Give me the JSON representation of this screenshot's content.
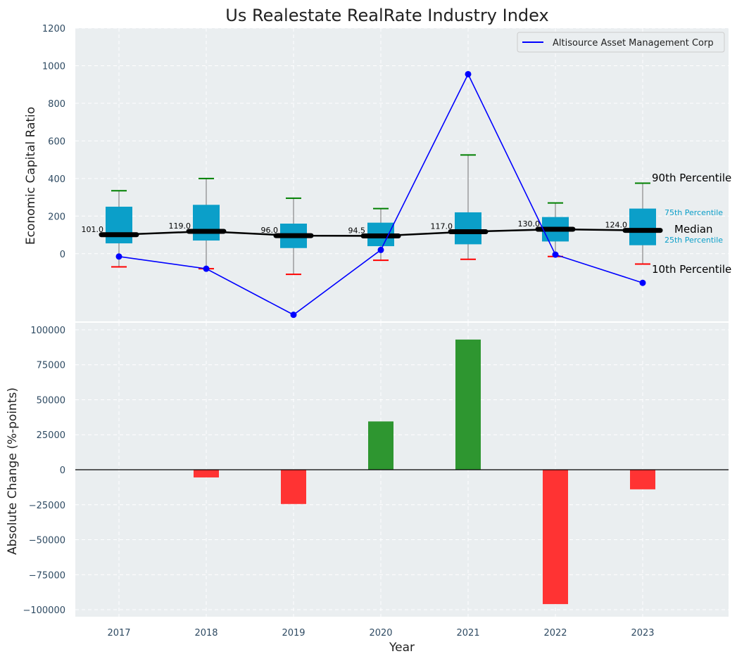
{
  "title": "Us Realestate RealRate Industry Index",
  "colors": {
    "box": "#0b9fc9",
    "median": "#000000",
    "company_line": "#0000ff",
    "whisker_top": "#008000",
    "whisker_bottom": "#ff0000",
    "bar_positive": "#2e9630",
    "bar_negative": "#ff3333",
    "panel_bg": "#eaeef0"
  },
  "chart_data": [
    {
      "type": "box",
      "ylabel": "Economic Capital Ratio",
      "ylim": [
        -360,
        1200
      ],
      "yticks": [
        0,
        200,
        400,
        600,
        800,
        1000,
        1200
      ],
      "ytick_labels": [
        "0",
        "200",
        "400",
        "600",
        "800",
        "1000",
        "1200"
      ],
      "categories": [
        "2017",
        "2018",
        "2019",
        "2020",
        "2021",
        "2022",
        "2023"
      ],
      "p10": [
        -70,
        -80,
        -110,
        -35,
        -30,
        -15,
        -55
      ],
      "p25": [
        55,
        70,
        30,
        40,
        50,
        65,
        45
      ],
      "median": [
        101.0,
        119.0,
        96.0,
        94.5,
        117.0,
        130.0,
        124.0
      ],
      "median_labels": [
        "101.0",
        "119.0",
        "96.0",
        "94.5",
        "117.0",
        "130.0",
        "124.0"
      ],
      "p75": [
        250,
        260,
        160,
        165,
        220,
        195,
        240
      ],
      "p90": [
        335,
        400,
        295,
        240,
        525,
        270,
        375
      ],
      "series": [
        {
          "name": "Altisource Asset Management Corp",
          "values": [
            -15,
            -80,
            -325,
            20,
            955,
            -5,
            -155
          ]
        }
      ],
      "legend": "top-right",
      "annotations": {
        "p90": "90th Percentile",
        "p75": "75th Percentile",
        "median": "Median",
        "p25": "25th Percentile",
        "p10": "10th Percentile"
      }
    },
    {
      "type": "bar",
      "xlabel": "Year",
      "ylabel": "Absolute Change (%-points)",
      "ylim": [
        -105000,
        105000
      ],
      "yticks": [
        -100000,
        -75000,
        -50000,
        -25000,
        0,
        25000,
        50000,
        75000,
        100000
      ],
      "ytick_labels": [
        "−100000",
        "−75000",
        "−50000",
        "−25000",
        "0",
        "25000",
        "50000",
        "75000",
        "100000"
      ],
      "categories": [
        "2017",
        "2018",
        "2019",
        "2020",
        "2021",
        "2022",
        "2023"
      ],
      "values": [
        0,
        -5500,
        -24500,
        34500,
        93000,
        -96000,
        -14000
      ]
    }
  ]
}
